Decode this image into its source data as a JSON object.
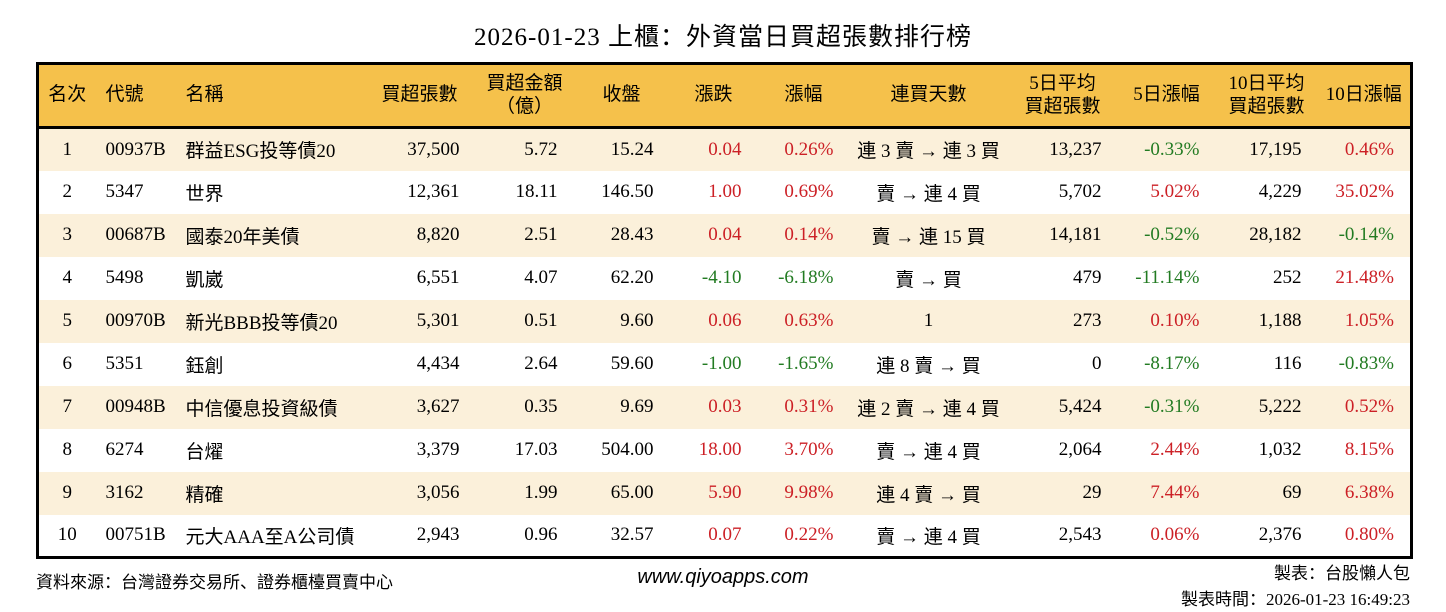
{
  "chart_data": {
    "type": "table",
    "title": "2026-01-23 上櫃：外資當日買超張數排行榜",
    "columns": [
      {
        "key": "rank",
        "label": "名次"
      },
      {
        "key": "code",
        "label": "代號"
      },
      {
        "key": "name",
        "label": "名稱"
      },
      {
        "key": "buy_volume",
        "label": "買超張數"
      },
      {
        "key": "buy_amount",
        "label": "買超金額\n（億）"
      },
      {
        "key": "close",
        "label": "收盤"
      },
      {
        "key": "change",
        "label": "漲跌"
      },
      {
        "key": "change_pct",
        "label": "漲幅"
      },
      {
        "key": "streak",
        "label": "連買天數"
      },
      {
        "key": "avg5",
        "label": "5日平均\n買超張數"
      },
      {
        "key": "pct5",
        "label": "5日漲幅"
      },
      {
        "key": "avg10",
        "label": "10日平均\n買超張數"
      },
      {
        "key": "pct10",
        "label": "10日漲幅"
      }
    ],
    "change_columns": [
      "change",
      "change_pct",
      "pct5",
      "pct10"
    ],
    "rows": [
      [
        "1",
        "00937B",
        "群益ESG投等債20",
        "37,500",
        "5.72",
        "15.24",
        "0.04",
        "0.26%",
        "連 3 賣 → 連 3 買",
        "13,237",
        "-0.33%",
        "17,195",
        "0.46%"
      ],
      [
        "2",
        "5347",
        "世界",
        "12,361",
        "18.11",
        "146.50",
        "1.00",
        "0.69%",
        "賣 → 連 4 買",
        "5,702",
        "5.02%",
        "4,229",
        "35.02%"
      ],
      [
        "3",
        "00687B",
        "國泰20年美債",
        "8,820",
        "2.51",
        "28.43",
        "0.04",
        "0.14%",
        "賣 → 連 15 買",
        "14,181",
        "-0.52%",
        "28,182",
        "-0.14%"
      ],
      [
        "4",
        "5498",
        "凱崴",
        "6,551",
        "4.07",
        "62.20",
        "-4.10",
        "-6.18%",
        "賣 → 買",
        "479",
        "-11.14%",
        "252",
        "21.48%"
      ],
      [
        "5",
        "00970B",
        "新光BBB投等債20",
        "5,301",
        "0.51",
        "9.60",
        "0.06",
        "0.63%",
        "1",
        "273",
        "0.10%",
        "1,188",
        "1.05%"
      ],
      [
        "6",
        "5351",
        "鈺創",
        "4,434",
        "2.64",
        "59.60",
        "-1.00",
        "-1.65%",
        "連 8 賣 → 買",
        "0",
        "-8.17%",
        "116",
        "-0.83%"
      ],
      [
        "7",
        "00948B",
        "中信優息投資級債",
        "3,627",
        "0.35",
        "9.69",
        "0.03",
        "0.31%",
        "連 2 賣 → 連 4 買",
        "5,424",
        "-0.31%",
        "5,222",
        "0.52%"
      ],
      [
        "8",
        "6274",
        "台燿",
        "3,379",
        "17.03",
        "504.00",
        "18.00",
        "3.70%",
        "賣 → 連 4 買",
        "2,064",
        "2.44%",
        "1,032",
        "8.15%"
      ],
      [
        "9",
        "3162",
        "精確",
        "3,056",
        "1.99",
        "65.00",
        "5.90",
        "9.98%",
        "連 4 賣 → 買",
        "29",
        "7.44%",
        "69",
        "6.38%"
      ],
      [
        "10",
        "00751B",
        "元大AAA至A公司債",
        "2,943",
        "0.96",
        "32.57",
        "0.07",
        "0.22%",
        "賣 → 連 4 買",
        "2,543",
        "0.06%",
        "2,376",
        "0.80%"
      ]
    ]
  },
  "footer": {
    "source": "資料來源：台灣證券交易所、證券櫃檯買賣中心",
    "website": "www.qiyoapps.com",
    "author": "製表：台股懶人包",
    "generated": "製表時間：2026-01-23 16:49:23"
  },
  "colors": {
    "header_bg": "#F5C14B",
    "row_alt_bg": "#FBF0DA",
    "up_red": "#CC2026",
    "down_green": "#227B22"
  }
}
